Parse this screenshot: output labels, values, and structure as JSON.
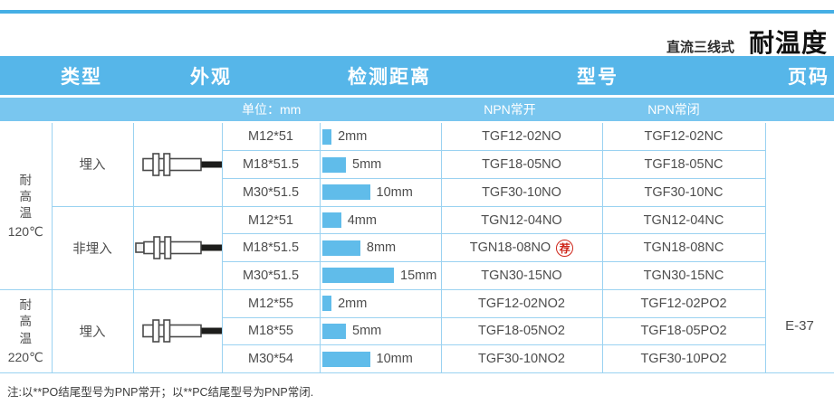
{
  "page": {
    "series_label": "直流三线式",
    "title": "耐温度",
    "footer_note": "注:以**PO结尾型号为PNP常开；以**PC结尾型号为PNP常闭."
  },
  "colors": {
    "header_blue": "#56B6E9",
    "subheader_blue": "#79C6EF",
    "grid_blue": "#9AD2F1",
    "bar_blue": "#60BCEA",
    "badge_red": "#CE2418",
    "topline_blue": "#45AFE5"
  },
  "table": {
    "headers": {
      "type": "类型",
      "appearance": "外观",
      "distance": "检测距离",
      "model": "型号",
      "page": "页码"
    },
    "subheaders": {
      "unit": "单位：mm",
      "npn_no": "NPN常开",
      "npn_nc": "NPN常闭"
    },
    "page_code": "E-37",
    "groups": [
      {
        "temp_label": "耐高温",
        "temp_value": "120℃",
        "subgroups": [
          {
            "type": "埋入",
            "icon": "flush-sensor-icon"
          },
          {
            "type": "非埋入",
            "icon": "nonflush-sensor-icon"
          }
        ]
      },
      {
        "temp_label": "耐高温",
        "temp_value": "220℃",
        "subgroups": [
          {
            "type": "埋入",
            "icon": "flush-sensor-icon"
          }
        ]
      }
    ],
    "rows": [
      {
        "size": "M12*51",
        "distance_mm": 2,
        "distance_label": "2mm",
        "npn_no": "TGF12-02NO",
        "npn_nc": "TGF12-02NC"
      },
      {
        "size": "M18*51.5",
        "distance_mm": 5,
        "distance_label": "5mm",
        "npn_no": "TGF18-05NO",
        "npn_nc": "TGF18-05NC"
      },
      {
        "size": "M30*51.5",
        "distance_mm": 10,
        "distance_label": "10mm",
        "npn_no": "TGF30-10NO",
        "npn_nc": "TGF30-10NC"
      },
      {
        "size": "M12*51",
        "distance_mm": 4,
        "distance_label": "4mm",
        "npn_no": "TGN12-04NO",
        "npn_nc": "TGN12-04NC"
      },
      {
        "size": "M18*51.5",
        "distance_mm": 8,
        "distance_label": "8mm",
        "npn_no": "TGN18-08NO",
        "badge": "荐",
        "npn_nc": "TGN18-08NC"
      },
      {
        "size": "M30*51.5",
        "distance_mm": 15,
        "distance_label": "15mm",
        "npn_no": "TGN30-15NO",
        "npn_nc": "TGN30-15NC"
      },
      {
        "size": "M12*55",
        "distance_mm": 2,
        "distance_label": "2mm",
        "npn_no": "TGF12-02NO2",
        "npn_nc": "TGF12-02PO2"
      },
      {
        "size": "M18*55",
        "distance_mm": 5,
        "distance_label": "5mm",
        "npn_no": "TGF18-05NO2",
        "npn_nc": "TGF18-05PO2"
      },
      {
        "size": "M30*54",
        "distance_mm": 10,
        "distance_label": "10mm",
        "npn_no": "TGF30-10NO2",
        "npn_nc": "TGF30-10PO2"
      }
    ]
  }
}
